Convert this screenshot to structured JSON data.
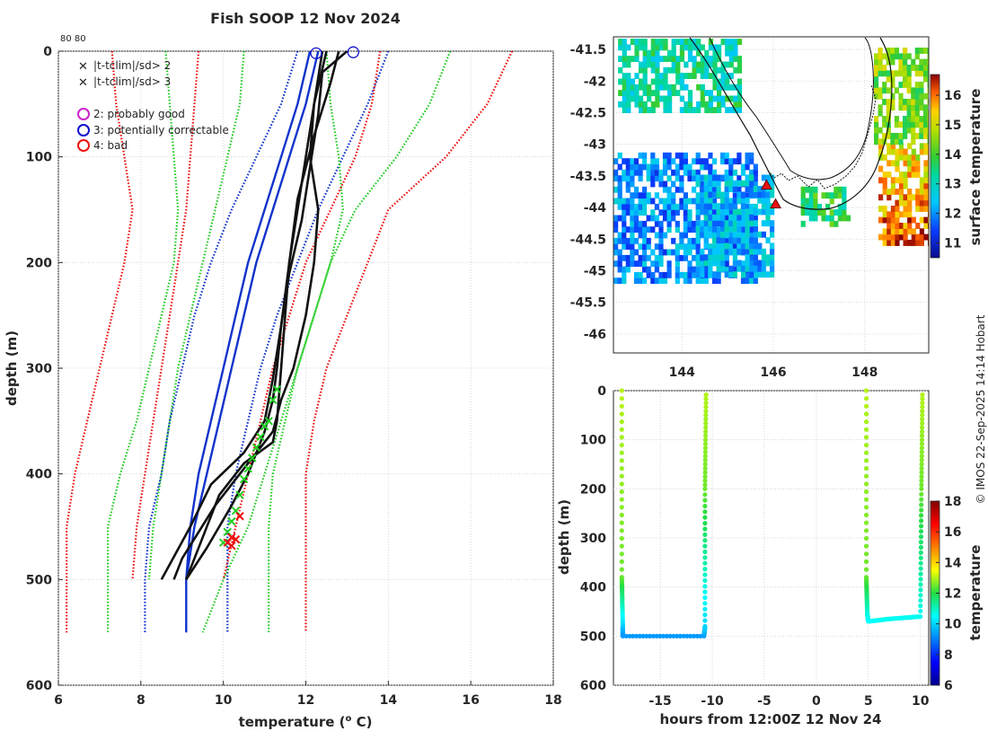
{
  "chart_data": [
    {
      "type": "line",
      "name": "profile",
      "title": "Fish SOOP 12 Nov 2024",
      "corner_note": "80 80",
      "xlabel": "temperature (",
      "xlabel_sup": "o",
      "xlabel_end": " C)",
      "ylabel": "depth (m)",
      "xlim": [
        6,
        18
      ],
      "ylim": [
        0,
        600
      ],
      "xticks": [
        6,
        8,
        10,
        12,
        14,
        16,
        18
      ],
      "yticks": [
        0,
        100,
        200,
        300,
        400,
        500,
        600
      ],
      "legend": [
        {
          "marker": "x",
          "color": "#22cc22",
          "label": "|t-tclim|/sd> 2"
        },
        {
          "marker": "x",
          "color": "#ee1111",
          "label": "|t-tclim|/sd> 3"
        },
        {
          "marker": "o",
          "color": "#cc22cc",
          "label": "2: probably good"
        },
        {
          "marker": "o",
          "color": "#1111cc",
          "label": "3: potentially correctable"
        },
        {
          "marker": "o",
          "color": "#ee1111",
          "label": "4: bad"
        }
      ],
      "series": [
        {
          "name": "clim-3sd-low",
          "color": "#ee1111",
          "style": "dotted",
          "t": [
            7.3,
            7.4,
            7.6,
            7.8,
            7.6,
            7.3,
            7.0,
            6.7,
            6.4,
            6.2,
            6.2
          ],
          "z": [
            0,
            50,
            100,
            150,
            200,
            250,
            300,
            350,
            400,
            450,
            550
          ]
        },
        {
          "name": "clim-2sd-low",
          "color": "#22cc22",
          "style": "dotted",
          "t": [
            8.6,
            8.7,
            8.8,
            8.9,
            8.8,
            8.5,
            8.2,
            7.9,
            7.5,
            7.2,
            7.2
          ],
          "z": [
            0,
            50,
            100,
            150,
            200,
            250,
            300,
            350,
            400,
            450,
            550
          ]
        },
        {
          "name": "clim-3sd-low-2",
          "color": "#ee1111",
          "style": "dotted",
          "t": [
            9.4,
            9.3,
            9.2,
            9.1,
            8.9,
            8.7,
            8.5,
            8.3,
            8.1,
            7.9,
            7.8
          ],
          "z": [
            0,
            50,
            100,
            150,
            200,
            250,
            300,
            350,
            400,
            450,
            500
          ]
        },
        {
          "name": "clim-2sd-low-2",
          "color": "#22cc22",
          "style": "dotted",
          "t": [
            10.5,
            10.4,
            10.1,
            9.8,
            9.5,
            9.2,
            8.9,
            8.7,
            8.5,
            8.3,
            8.2
          ],
          "z": [
            0,
            50,
            100,
            150,
            200,
            250,
            300,
            350,
            400,
            450,
            500
          ]
        },
        {
          "name": "clim-1sd-low",
          "color": "#1133cc",
          "style": "dotted",
          "t": [
            11.8,
            11.4,
            10.8,
            10.2,
            9.7,
            9.3,
            9.0,
            8.7,
            8.5,
            8.2,
            8.1,
            8.1
          ],
          "z": [
            0,
            50,
            100,
            150,
            200,
            250,
            300,
            350,
            400,
            450,
            500,
            550
          ]
        },
        {
          "name": "clim-mean-1",
          "color": "#1133cc",
          "style": "solid",
          "t": [
            12.1,
            11.8,
            11.4,
            11.0,
            10.6,
            10.3,
            10.0,
            9.7,
            9.4,
            9.2,
            9.1
          ],
          "z": [
            0,
            50,
            100,
            150,
            200,
            250,
            300,
            350,
            400,
            450,
            500
          ]
        },
        {
          "name": "clim-mean-2",
          "color": "#1133cc",
          "style": "solid",
          "t": [
            12.3,
            12.0,
            11.6,
            11.2,
            10.8,
            10.5,
            10.2,
            9.9,
            9.6,
            9.3,
            9.1,
            9.1
          ],
          "z": [
            0,
            50,
            100,
            150,
            200,
            250,
            300,
            350,
            400,
            450,
            500,
            550
          ]
        },
        {
          "name": "clim-1sd-high",
          "color": "#1133cc",
          "style": "dotted",
          "t": [
            14.0,
            13.5,
            12.9,
            12.3,
            11.8,
            11.3,
            10.9,
            10.6,
            10.3,
            10.1,
            10.1,
            10.1
          ],
          "z": [
            0,
            50,
            100,
            150,
            200,
            250,
            300,
            350,
            400,
            450,
            500,
            550
          ]
        },
        {
          "name": "clim-2sd-high-2",
          "color": "#22cc22",
          "style": "dotted",
          "t": [
            12.5,
            12.6,
            12.8,
            12.9,
            12.6,
            12.2,
            11.8,
            11.4,
            11.0,
            10.6,
            10.0,
            9.5
          ],
          "z": [
            0,
            50,
            100,
            150,
            200,
            250,
            300,
            350,
            400,
            450,
            500,
            550
          ]
        },
        {
          "name": "clim-2sd-high",
          "color": "#22cc22",
          "style": "dotted",
          "t": [
            15.5,
            15.0,
            14.2,
            13.2,
            12.6,
            12.2,
            11.8,
            11.5,
            11.2,
            11.1,
            11.1,
            11.1
          ],
          "z": [
            0,
            50,
            100,
            150,
            200,
            250,
            300,
            350,
            400,
            450,
            500,
            550
          ]
        },
        {
          "name": "clim-3sd-high",
          "color": "#ee1111",
          "style": "dotted",
          "t": [
            17.0,
            16.4,
            15.4,
            14.0,
            13.5,
            13.0,
            12.5,
            12.2,
            12.0,
            12.0,
            12.0,
            12.0
          ],
          "z": [
            0,
            50,
            100,
            150,
            200,
            250,
            300,
            350,
            400,
            450,
            500,
            550
          ]
        },
        {
          "name": "clim-3sd-high-2",
          "color": "#ee1111",
          "style": "dotted",
          "t": [
            13.8,
            13.6,
            13.2,
            12.6,
            12.0,
            11.6,
            11.2,
            10.9,
            10.6,
            10.3,
            10.0
          ],
          "z": [
            0,
            50,
            100,
            150,
            200,
            250,
            300,
            350,
            400,
            450,
            500
          ]
        },
        {
          "name": "profile-1",
          "color": "#111111",
          "style": "solid",
          "t": [
            12.4,
            12.2,
            12.0,
            11.8,
            11.6,
            11.5,
            11.4,
            11.3,
            11.2,
            10.5,
            9.9,
            9.5,
            9.1
          ],
          "z": [
            0,
            50,
            100,
            150,
            200,
            250,
            300,
            350,
            370,
            390,
            420,
            460,
            500
          ]
        },
        {
          "name": "profile-2",
          "color": "#111111",
          "style": "solid",
          "t": [
            12.5,
            12.2,
            12.1,
            12.3,
            12.2,
            12.0,
            11.7,
            11.4,
            11.2,
            10.6,
            9.8,
            9.0,
            8.8
          ],
          "z": [
            0,
            50,
            100,
            150,
            200,
            250,
            300,
            330,
            360,
            390,
            430,
            480,
            500
          ]
        },
        {
          "name": "profile-3",
          "color": "#111111",
          "style": "solid",
          "t": [
            13.0,
            12.4,
            12.3,
            12.1,
            11.9,
            11.6,
            11.4,
            11.2,
            11.0,
            10.5,
            9.7,
            9.2,
            8.5
          ],
          "z": [
            0,
            20,
            60,
            110,
            160,
            210,
            260,
            310,
            350,
            380,
            410,
            450,
            500
          ]
        },
        {
          "name": "profile-4",
          "color": "#111111",
          "style": "solid",
          "t": [
            12.8,
            12.6,
            12.2,
            11.8,
            11.6,
            11.4,
            11.3,
            11.2,
            11.0,
            10.6,
            10.2,
            9.6,
            9.1
          ],
          "z": [
            0,
            30,
            80,
            140,
            200,
            260,
            300,
            330,
            360,
            400,
            430,
            470,
            500
          ]
        }
      ],
      "flags_green": [
        [
          11.3,
          320
        ],
        [
          11.2,
          330
        ],
        [
          11.1,
          350
        ],
        [
          11.0,
          355
        ],
        [
          10.9,
          365
        ],
        [
          10.8,
          375
        ],
        [
          10.7,
          385
        ],
        [
          10.6,
          395
        ],
        [
          10.5,
          405
        ],
        [
          10.4,
          420
        ],
        [
          10.3,
          435
        ],
        [
          10.2,
          445
        ],
        [
          10.1,
          455
        ],
        [
          10.0,
          465
        ]
      ],
      "flags_red": [
        [
          10.4,
          440
        ],
        [
          10.2,
          460
        ],
        [
          10.1,
          465
        ],
        [
          10.3,
          462
        ],
        [
          10.2,
          468
        ]
      ],
      "circles_blue": [
        [
          12.25,
          2
        ],
        [
          13.15,
          1
        ]
      ]
    },
    {
      "type": "heatmap",
      "name": "map",
      "xlim": [
        142.5,
        149.4
      ],
      "ylim": [
        -46.3,
        -41.3
      ],
      "xticks": [
        144,
        146,
        148
      ],
      "yticks": [
        -41.5,
        -42,
        -42.5,
        -43,
        -43.5,
        -44,
        -44.5,
        -45,
        -45.5,
        -46
      ],
      "ytick_labels": [
        "-41.5",
        "-42",
        "-42.5",
        "-43",
        "-43.5",
        "-44",
        "-44.5",
        "-45",
        "-45.5",
        "-46"
      ],
      "colorbar_label": "surface temperature",
      "clim": [
        10.5,
        16.7
      ],
      "cticks": [
        11,
        12,
        13,
        14,
        15,
        16
      ],
      "markers": [
        [
          145.85,
          -43.65
        ],
        [
          146.05,
          -43.95
        ]
      ]
    },
    {
      "type": "scatter",
      "name": "sections",
      "xlabel": "hours from 12:00Z 12 Nov 24",
      "ylabel": "depth (m)",
      "xlim": [
        -19.5,
        10.8
      ],
      "ylim": [
        0,
        600
      ],
      "xticks": [
        -15,
        -10,
        -5,
        0,
        5,
        10
      ],
      "xtick_labels": [
        "-15",
        "-10",
        "-5",
        "0",
        "5",
        "10"
      ],
      "yticks": [
        0,
        100,
        200,
        300,
        400,
        500,
        600
      ],
      "colorbar_label": "temperature",
      "clim": [
        6,
        18
      ],
      "cticks": [
        6,
        8,
        10,
        12,
        14,
        16,
        18
      ],
      "tracks": [
        {
          "hours": [
            -18.7,
            -18.7,
            -18.6,
            -18.6,
            -10.8,
            -10.7,
            -10.7,
            -10.6
          ],
          "depth": [
            0,
            380,
            480,
            500,
            500,
            480,
            200,
            0
          ],
          "temp": [
            13.0,
            12.5,
            10.0,
            9.3,
            9.3,
            10.0,
            12.5,
            13.0
          ]
        },
        {
          "hours": [
            4.8,
            4.8,
            4.9,
            5.0,
            7.0,
            10.0,
            10.1,
            10.2
          ],
          "depth": [
            0,
            380,
            455,
            470,
            465,
            460,
            200,
            0
          ],
          "temp": [
            13.0,
            12.5,
            10.8,
            10.5,
            10.6,
            10.6,
            12.5,
            13.0
          ]
        }
      ]
    }
  ],
  "watermark": "© IMOS 22-Sep-2025 14:14 Hobart"
}
